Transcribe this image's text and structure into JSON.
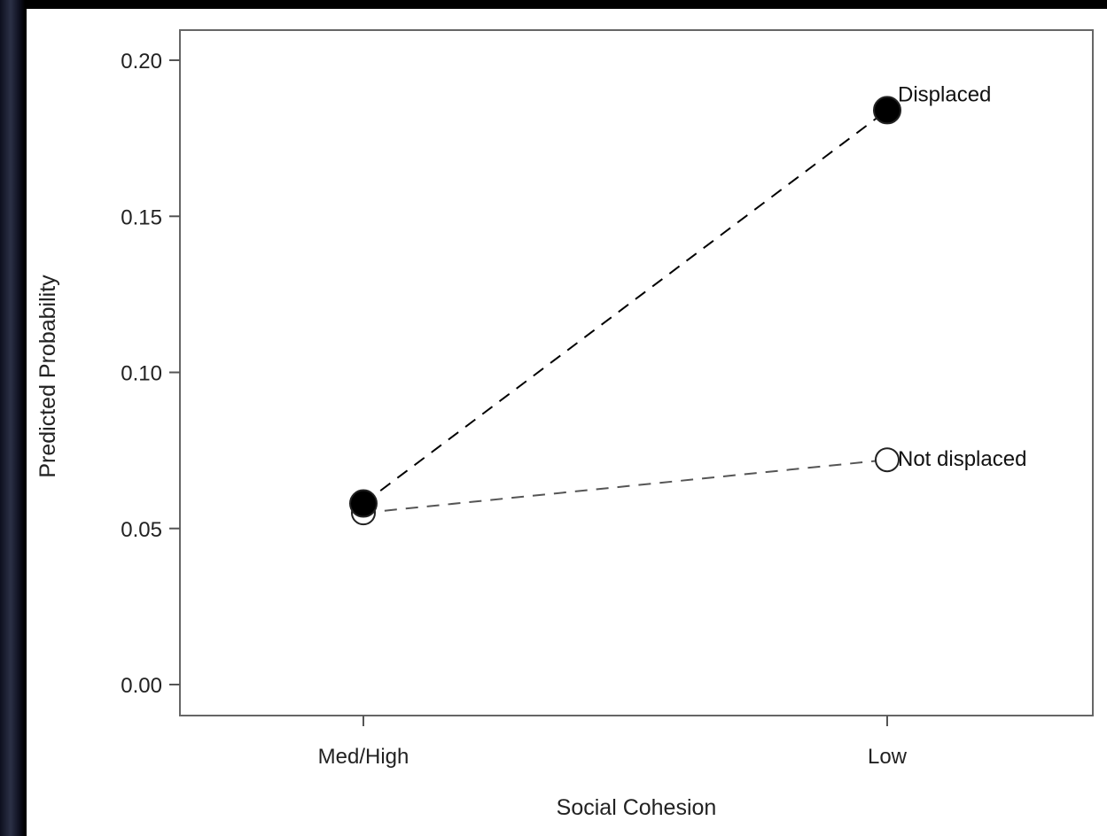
{
  "chart_data": {
    "type": "line",
    "title": "",
    "xlabel": "Social Cohesion",
    "ylabel": "Predicted Probability",
    "categories": [
      "Med/High",
      "Low"
    ],
    "ylim": [
      0.0,
      0.2
    ],
    "yticks": [
      "0.00",
      "0.05",
      "0.10",
      "0.15",
      "0.20"
    ],
    "yticks_values": [
      0.0,
      0.05,
      0.1,
      0.15,
      0.2
    ],
    "grid": false,
    "legend": "none (direct labels at line ends)",
    "series": [
      {
        "name": "Not displaced",
        "values": [
          0.055,
          0.072
        ],
        "marker": "open-circle",
        "line": "dashed",
        "color": "#555555"
      },
      {
        "name": "Displaced",
        "values": [
          0.058,
          0.184
        ],
        "marker": "filled-circle",
        "line": "dashed",
        "color": "#000000"
      }
    ]
  }
}
